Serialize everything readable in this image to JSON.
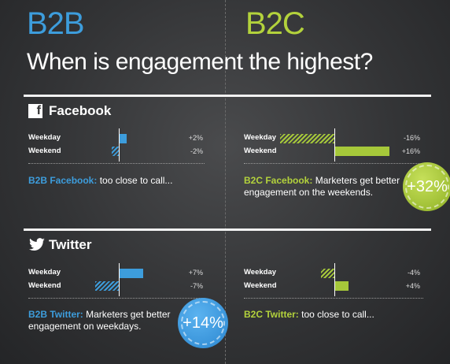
{
  "header": {
    "b2b": "B2B",
    "b2c": "B2C"
  },
  "title": "When is engagement the highest?",
  "sections": [
    {
      "name": "Facebook",
      "b2b": {
        "rows": [
          {
            "label": "Weekday",
            "pct": "+2%"
          },
          {
            "label": "Weekend",
            "pct": "-2%"
          }
        ],
        "note_bold": "B2B Facebook:",
        "note_text": "too close to call..."
      },
      "b2c": {
        "rows": [
          {
            "label": "Weekday",
            "pct": "-16%"
          },
          {
            "label": "Weekend",
            "pct": "+16%"
          }
        ],
        "note_bold": "B2C Facebook:",
        "note_text": "Marketers get better engagement on the weekends.",
        "badge": "+32%"
      }
    },
    {
      "name": "Twitter",
      "b2b": {
        "rows": [
          {
            "label": "Weekday",
            "pct": "+7%"
          },
          {
            "label": "Weekend",
            "pct": "-7%"
          }
        ],
        "note_bold": "B2B Twitter:",
        "note_text": "Marketers get better engagement on weekdays.",
        "badge": "+14%"
      },
      "b2c": {
        "rows": [
          {
            "label": "Weekday",
            "pct": "-4%"
          },
          {
            "label": "Weekend",
            "pct": "+4%"
          }
        ],
        "note_bold": "B2C Twitter:",
        "note_text": "too close to call..."
      }
    }
  ],
  "chart_data": [
    {
      "type": "bar",
      "platform": "Facebook",
      "segment": "B2B",
      "categories": [
        "Weekday",
        "Weekend"
      ],
      "values": [
        2,
        -2
      ]
    },
    {
      "type": "bar",
      "platform": "Facebook",
      "segment": "B2C",
      "categories": [
        "Weekday",
        "Weekend"
      ],
      "values": [
        -16,
        16
      ]
    },
    {
      "type": "bar",
      "platform": "Twitter",
      "segment": "B2B",
      "categories": [
        "Weekday",
        "Weekend"
      ],
      "values": [
        7,
        -7
      ]
    },
    {
      "type": "bar",
      "platform": "Twitter",
      "segment": "B2C",
      "categories": [
        "Weekday",
        "Weekend"
      ],
      "values": [
        -4,
        4
      ]
    }
  ],
  "colors": {
    "b2b": "#3d9ddc",
    "b2c": "#b3d23c"
  }
}
